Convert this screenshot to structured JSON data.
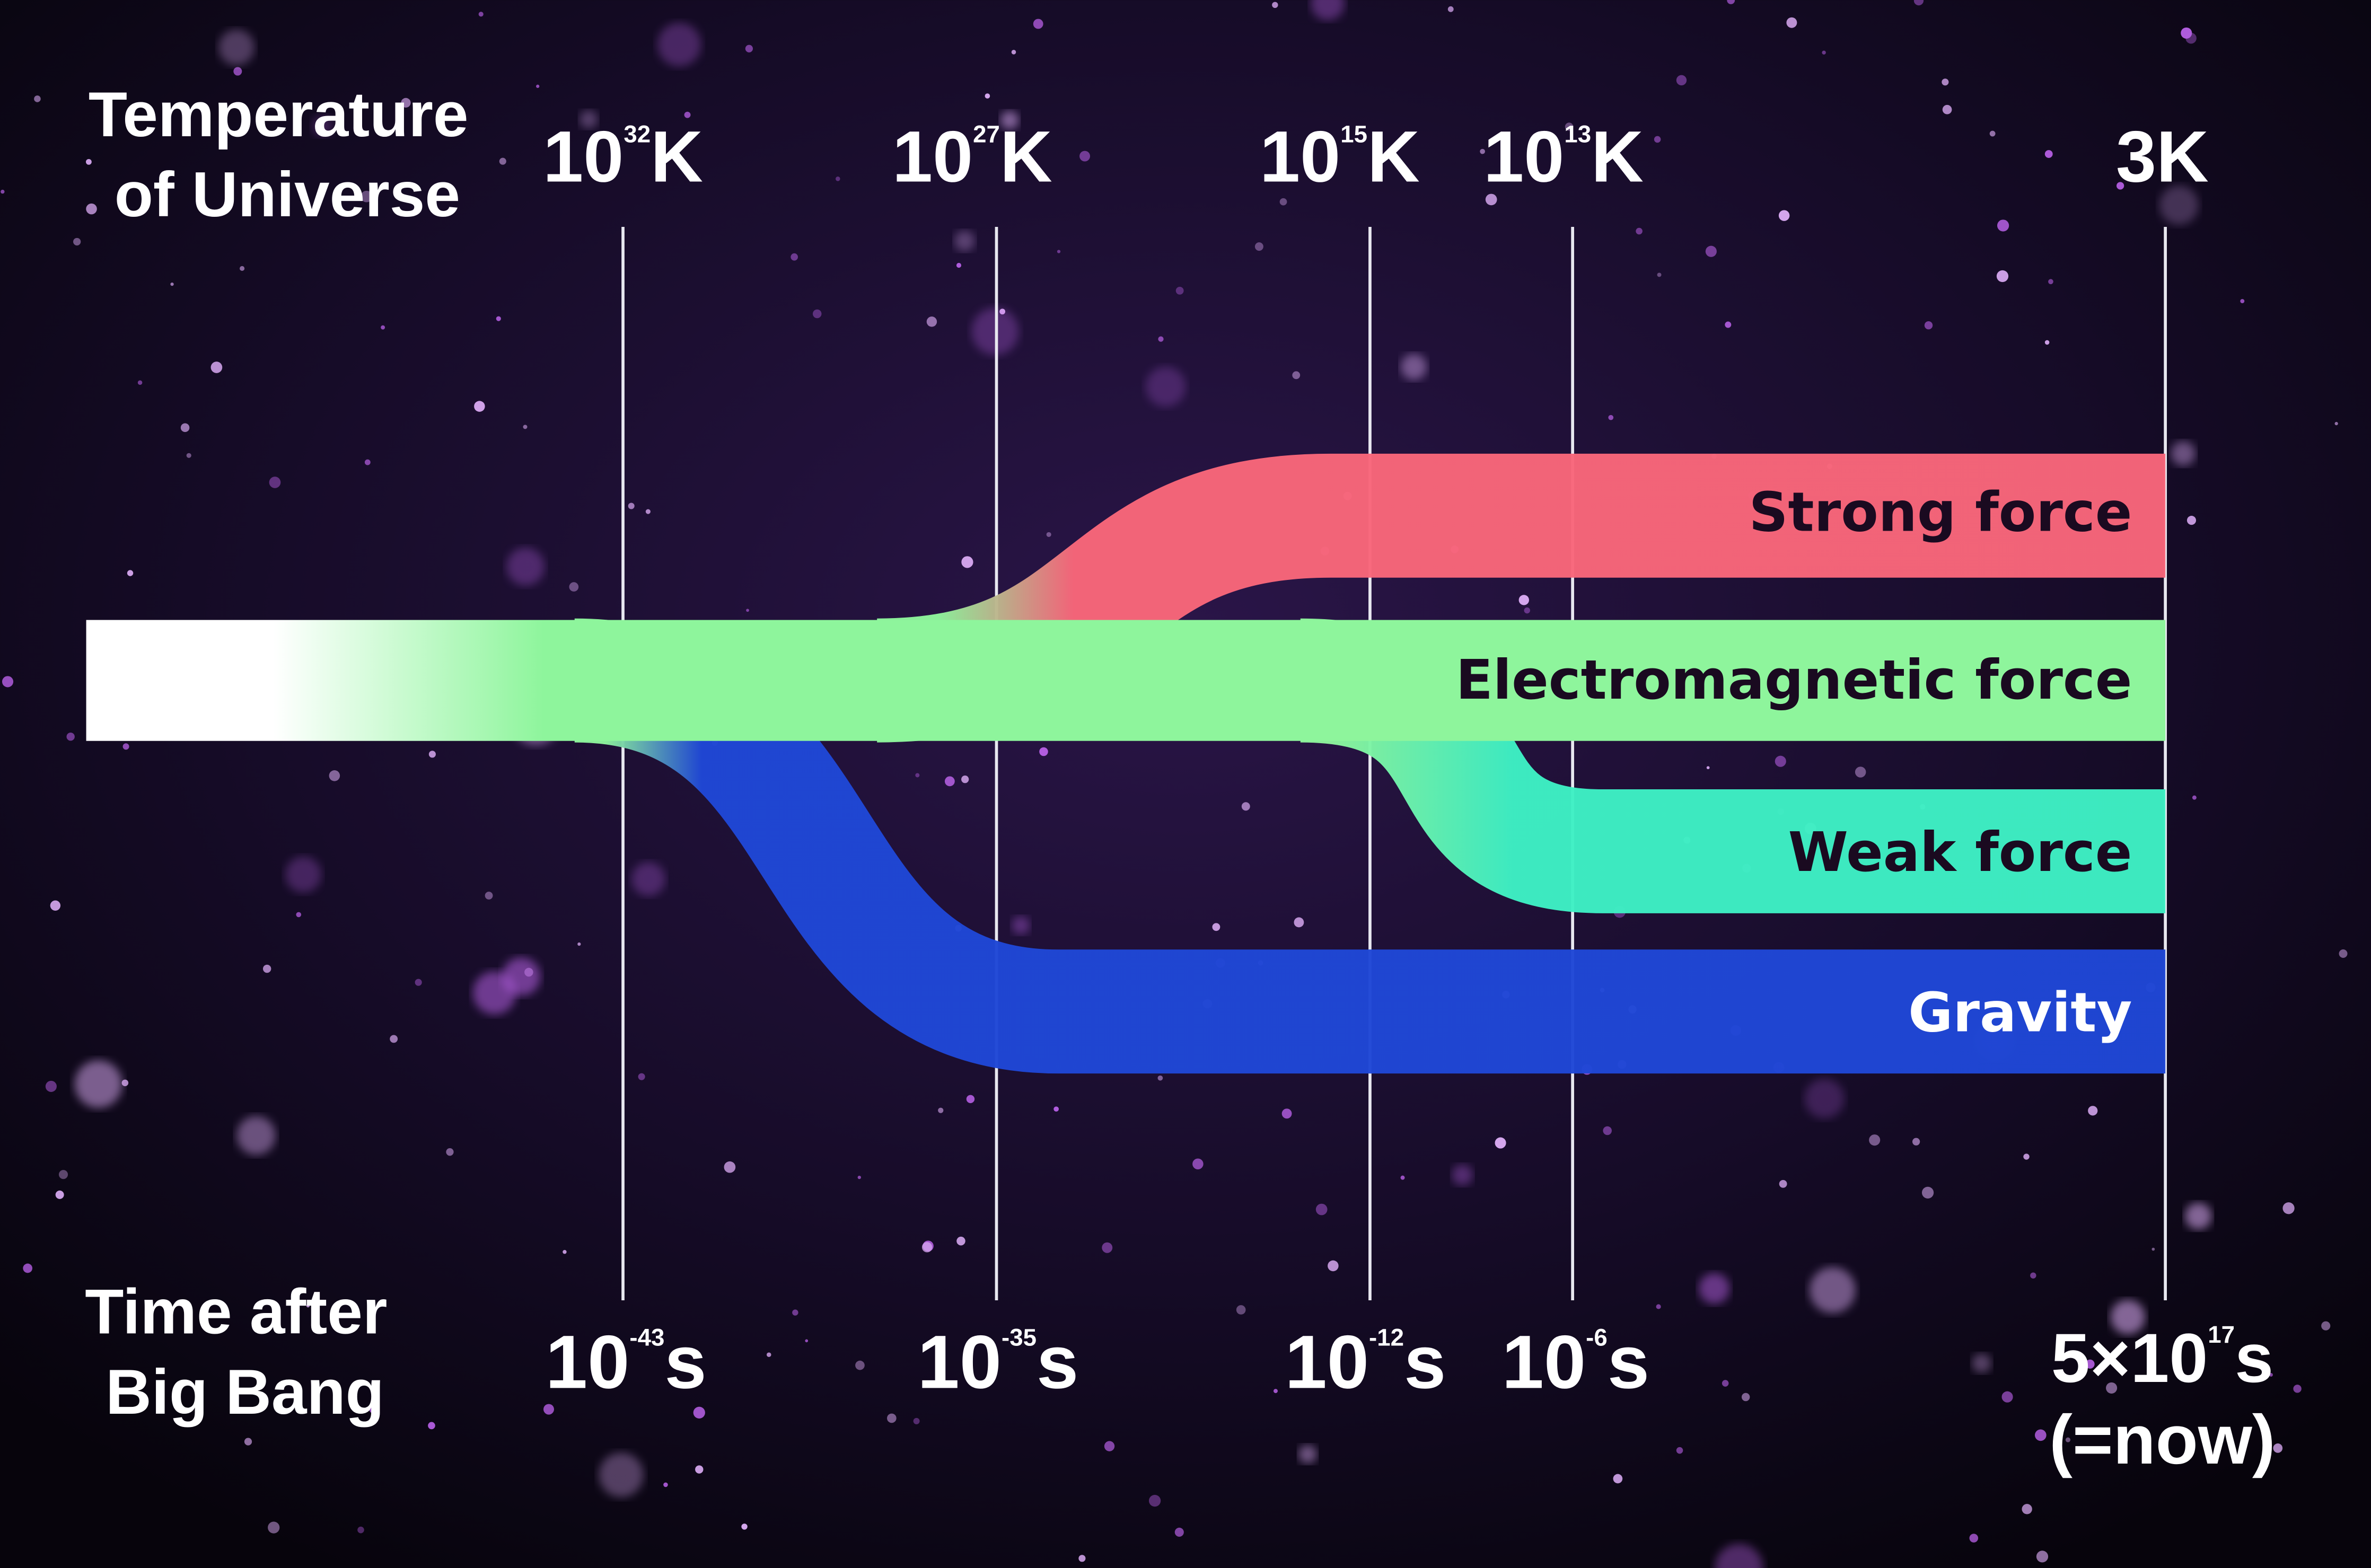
{
  "axis_titles": {
    "temperature": [
      "Temperature",
      "of Universe"
    ],
    "time": [
      "Time after",
      "Big Bang"
    ]
  },
  "temperature_ticks": [
    {
      "base": "10",
      "exp": "32",
      "unit": "K"
    },
    {
      "base": "10",
      "exp": "27",
      "unit": "K"
    },
    {
      "base": "10",
      "exp": "15",
      "unit": "K"
    },
    {
      "base": "10",
      "exp": "13",
      "unit": "K"
    },
    {
      "base": "3K",
      "exp": "",
      "unit": ""
    }
  ],
  "time_ticks": [
    {
      "base": "10",
      "exp": "-43",
      "unit": "s"
    },
    {
      "base": "10",
      "exp": "-35",
      "unit": "s"
    },
    {
      "base": "10",
      "exp": "-12",
      "unit": "s"
    },
    {
      "base": "10",
      "exp": "-6",
      "unit": "s"
    },
    {
      "base": "5×10",
      "exp": "17",
      "unit": "s",
      "note": "(=now)"
    }
  ],
  "forces": [
    {
      "name": "Strong force",
      "color": "#f8667a",
      "text_color": "#1a0a20"
    },
    {
      "name": "Electromagnetic force",
      "color": "#8ef59c",
      "text_color": "#1a0a20"
    },
    {
      "name": "Weak force",
      "color": "#3ef0c4",
      "text_color": "#1a0a20"
    },
    {
      "name": "Gravity",
      "color": "#1f47d6",
      "text_color": "#ffffff"
    }
  ],
  "colors": {
    "background": "#0c0618",
    "unified": "#ffffff",
    "nebula": "#6a2fa0"
  }
}
